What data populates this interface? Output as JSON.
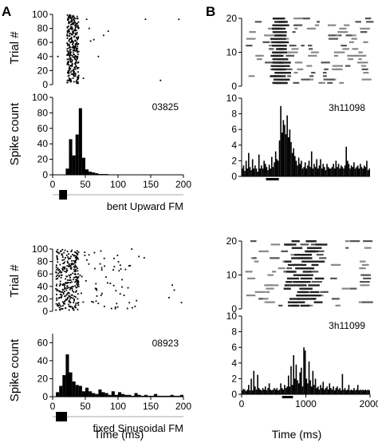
{
  "panels": {
    "A": "A",
    "B": "B"
  },
  "axis_labels": {
    "trial": "Trial #",
    "spike_count": "Spike count",
    "time": "Time (ms)"
  },
  "chart_data": [
    {
      "id": "A1-raster",
      "type": "scatter",
      "title": "",
      "ylabel": "Trial #",
      "xlim": [
        0,
        200
      ],
      "ylim": [
        0,
        100
      ],
      "yticks": [
        0,
        20,
        40,
        60,
        80,
        100
      ],
      "band": {
        "x": [
          22,
          40
        ],
        "trials": [
          2,
          99
        ]
      },
      "extra_points": [
        [
          8,
          40
        ],
        [
          52,
          93
        ],
        [
          56,
          80
        ],
        [
          58,
          62
        ],
        [
          63,
          64
        ],
        [
          70,
          40
        ],
        [
          78,
          70
        ],
        [
          85,
          76
        ],
        [
          142,
          93
        ],
        [
          193,
          93
        ],
        [
          165,
          6
        ],
        [
          47,
          9
        ]
      ]
    },
    {
      "id": "A1-hist",
      "type": "bar",
      "title": "",
      "cell_id": "03825",
      "ylabel": "Spike count",
      "xlim": [
        0,
        200
      ],
      "ylim": [
        0,
        100
      ],
      "yticks": [
        0,
        20,
        40,
        60,
        80,
        100
      ],
      "xticks": [
        0,
        50,
        100,
        150,
        200
      ],
      "bin_width": 5,
      "bins_x": [
        20,
        25,
        30,
        35,
        40,
        45,
        50,
        55,
        60,
        65,
        70,
        75,
        80
      ],
      "values": [
        8,
        46,
        25,
        52,
        86,
        22,
        7,
        4,
        3,
        2,
        1,
        1,
        1
      ],
      "stimulus": {
        "label": "bent Upward FM",
        "start_ms": 10,
        "end_ms": 22
      }
    },
    {
      "id": "B1-raster",
      "type": "scatter",
      "title": "",
      "xlim": [
        0,
        2000
      ],
      "ylim": [
        0,
        20
      ],
      "yticks": [
        0,
        10,
        20
      ]
    },
    {
      "id": "B1-hist",
      "type": "bar",
      "title": "",
      "cell_id": "3h11098",
      "xlim": [
        0,
        2000
      ],
      "ylim": [
        0,
        10
      ],
      "yticks": [
        0,
        2,
        4,
        6,
        8,
        10
      ],
      "bin_width": 20,
      "values": [
        1,
        1.4,
        0.7,
        2,
        1,
        3,
        1.2,
        0.8,
        2.2,
        1,
        1.4,
        1,
        0.6,
        2.8,
        1,
        1.4,
        1,
        2,
        1.6,
        1.2,
        0.8,
        1.5,
        1,
        2.5,
        1.2,
        1.8,
        3.2,
        2.2,
        2,
        4.6,
        9,
        5.6,
        7.2,
        6.6,
        5.4,
        7.8,
        5,
        6,
        4.4,
        3,
        3.6,
        2.6,
        2,
        1.4,
        2.4,
        1.6,
        2,
        1,
        1.2,
        1.8,
        1,
        1.4,
        2,
        1.2,
        3.2,
        1,
        1.6,
        1.2,
        2.2,
        1,
        1.4,
        2.2,
        1,
        1.6,
        1.2,
        0.8,
        1.6,
        1.2,
        1,
        1,
        1.2,
        1.6,
        1,
        2,
        1.2,
        1.6,
        1,
        1.4,
        1.2,
        1,
        1.4,
        3.8,
        2,
        1.6,
        1,
        1.4,
        1.2,
        1.8,
        1,
        1.2,
        1.4,
        1,
        1.6,
        1.2,
        1,
        1.4,
        1.2,
        2,
        0.8,
        1
      ],
      "stimulus": {
        "start_ms": 380,
        "end_ms": 580
      }
    },
    {
      "id": "A2-raster",
      "type": "scatter",
      "title": "",
      "ylabel": "Trial #",
      "xlim": [
        0,
        200
      ],
      "ylim": [
        0,
        100
      ],
      "yticks": [
        0,
        20,
        40,
        60,
        80,
        100
      ],
      "band": {
        "x": [
          5,
          30
        ],
        "trials": [
          2,
          99
        ]
      }
    },
    {
      "id": "A2-hist",
      "type": "bar",
      "title": "",
      "cell_id": "08923",
      "ylabel": "Spike count",
      "xlim": [
        0,
        200
      ],
      "ylim": [
        0,
        70
      ],
      "yticks": [
        0,
        20,
        40,
        60
      ],
      "xticks": [
        0,
        50,
        100,
        150,
        200
      ],
      "bin_width": 5,
      "bins_x": [
        5,
        10,
        15,
        20,
        25,
        30,
        35,
        40,
        45,
        50,
        55,
        60,
        65,
        70,
        75,
        80,
        85,
        90,
        95,
        100,
        105,
        110,
        115,
        120,
        125,
        130,
        135,
        140,
        145,
        150,
        155,
        160,
        165,
        170,
        175,
        180,
        185,
        190,
        195
      ],
      "values": [
        5,
        12,
        24,
        47,
        27,
        17,
        13,
        12,
        6,
        10,
        6,
        4,
        3,
        8,
        5,
        4,
        2,
        6,
        2,
        5,
        3,
        2,
        2,
        1,
        4,
        2,
        1,
        2,
        1,
        1,
        3,
        1,
        1,
        1,
        1,
        2,
        1,
        1,
        2
      ],
      "stimulus": {
        "label": "fixed Sinusoidal FM",
        "start_ms": 5,
        "end_ms": 22
      }
    },
    {
      "id": "B2-raster",
      "type": "scatter",
      "title": "",
      "xlim": [
        0,
        2000
      ],
      "ylim": [
        0,
        20
      ],
      "yticks": [
        0,
        10,
        20
      ]
    },
    {
      "id": "B2-hist",
      "type": "bar",
      "title": "",
      "cell_id": "3h11099",
      "xlim": [
        0,
        2000
      ],
      "ylim": [
        0,
        10
      ],
      "yticks": [
        0,
        2,
        4,
        6,
        8,
        10
      ],
      "xticks": [
        0,
        1000,
        2000
      ],
      "xticklabels": [
        "0",
        "1000",
        "2000"
      ],
      "bin_width": 20,
      "values": [
        0.5,
        0.7,
        0.6,
        0.4,
        0.6,
        1.2,
        0.5,
        2,
        0.5,
        3,
        1,
        0.6,
        2.5,
        0.8,
        0.6,
        0.5,
        0.8,
        0.6,
        1,
        0.5,
        0.8,
        1.4,
        0.6,
        0.5,
        0.6,
        0.8,
        0.6,
        0.8,
        0.5,
        0.6,
        1.4,
        0.8,
        0.6,
        1.2,
        0.8,
        1,
        2.4,
        1,
        3.6,
        1.2,
        5,
        2,
        3.8,
        1.8,
        1.4,
        2.8,
        3.4,
        1,
        6,
        5.6,
        2,
        1.4,
        4.2,
        1.8,
        1,
        3,
        1.2,
        2,
        0.8,
        1,
        0.6,
        1.2,
        0.8,
        1.6,
        0.6,
        0.8,
        1,
        0.6,
        1.4,
        0.8,
        0.6,
        1,
        0.5,
        0.8,
        1,
        0.6,
        0.8,
        0.5,
        2.6,
        0.6,
        0.8,
        0.5,
        0.6,
        1.2,
        0.5,
        0.6,
        0.5,
        0.8,
        0.5,
        0.6,
        1.2,
        0.5,
        0.6,
        0.5,
        0.6,
        0.5,
        0.6,
        0.5,
        0.6,
        0.5
      ],
      "stimulus": {
        "start_ms": 630,
        "end_ms": 800
      }
    }
  ]
}
